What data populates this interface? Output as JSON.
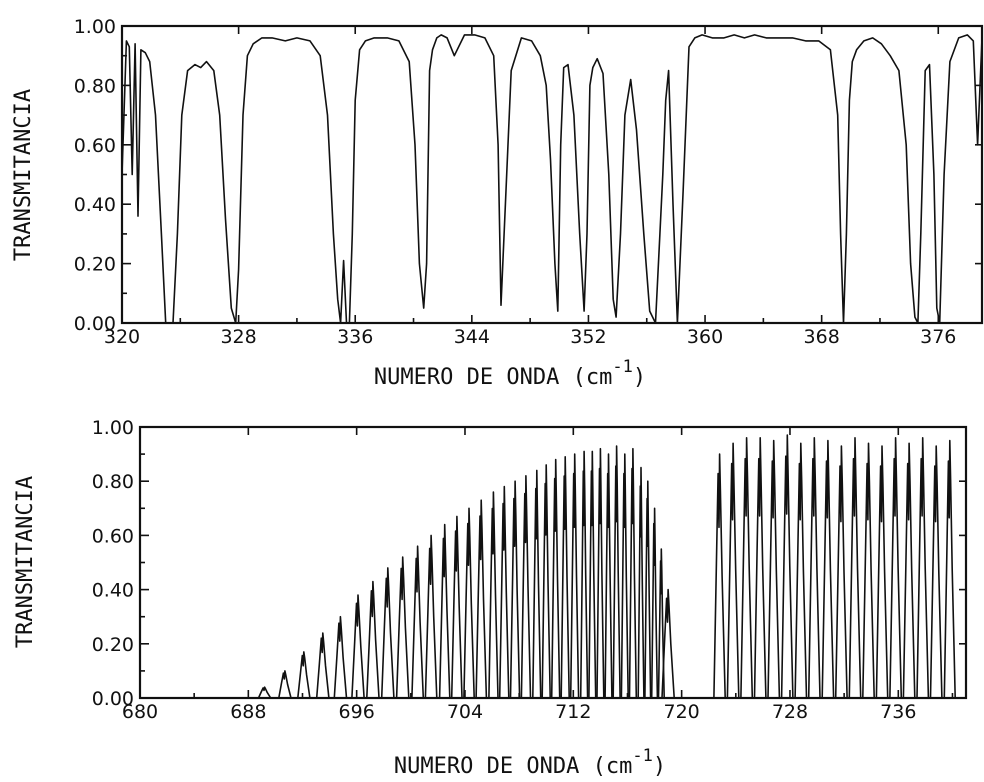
{
  "chart_data": [
    {
      "type": "line",
      "xlabel": "NUMERO DE ONDA (cm",
      "xlabel_sup": "-1",
      "xlabel_close": ")",
      "ylabel": "TRANSMITANCIA",
      "xlim": [
        320,
        379
      ],
      "ylim": [
        0,
        1
      ],
      "x_ticks": [
        320,
        328,
        336,
        344,
        352,
        360,
        368,
        376
      ],
      "x_tick_labels": [
        "320",
        "328",
        "336",
        "344",
        "352",
        "360",
        "368",
        "376"
      ],
      "y_ticks": [
        0,
        0.2,
        0.4,
        0.6,
        0.8,
        1.0
      ],
      "y_tick_labels": [
        "0.00",
        "0.20",
        "0.40",
        "0.60",
        "0.80",
        "1.00"
      ],
      "grid": false,
      "series": [
        {
          "x": [
            320.0,
            320.3,
            320.5,
            320.7,
            320.9,
            321.1,
            321.3,
            321.6,
            321.9,
            322.3,
            322.7,
            323.0,
            323.3,
            323.5,
            323.8,
            324.1,
            324.5,
            325.0,
            325.4,
            325.8,
            326.3,
            326.7,
            327.1,
            327.5,
            327.8,
            328.0,
            328.3,
            328.6,
            329.0,
            329.6,
            330.3,
            331.2,
            332.0,
            332.9,
            333.6,
            334.1,
            334.5,
            334.8,
            335.0,
            335.2,
            335.4,
            335.6,
            335.8,
            336.0,
            336.3,
            336.7,
            337.3,
            338.2,
            339.0,
            339.7,
            340.1,
            340.4,
            340.7,
            340.9,
            341.1,
            341.3,
            341.6,
            341.9,
            342.3,
            342.8,
            343.5,
            344.2,
            344.9,
            345.5,
            345.8,
            346.0,
            346.3,
            346.7,
            347.4,
            348.1,
            348.7,
            349.1,
            349.4,
            349.7,
            349.9,
            350.1,
            350.3,
            350.6,
            351.0,
            351.4,
            351.7,
            351.9,
            352.1,
            352.3,
            352.6,
            353.0,
            353.4,
            353.7,
            353.9,
            354.2,
            354.5,
            354.9,
            355.3,
            355.8,
            356.2,
            356.6,
            356.9,
            357.1,
            357.3,
            357.5,
            357.8,
            358.1,
            358.5,
            358.9,
            359.3,
            359.8,
            360.5,
            361.3,
            362.0,
            362.7,
            363.4,
            364.2,
            365.1,
            366.0,
            366.9,
            367.8,
            368.6,
            369.1,
            369.3,
            369.5,
            369.7,
            369.9,
            370.1,
            370.4,
            370.9,
            371.5,
            372.1,
            372.7,
            373.3,
            373.8,
            374.1,
            374.4,
            374.6,
            374.8,
            375.1,
            375.4,
            375.7,
            375.9,
            376.1,
            376.4,
            376.8,
            377.4,
            378.0,
            378.4,
            378.7,
            379.0
          ],
          "y": [
            0.5,
            0.95,
            0.93,
            0.5,
            0.94,
            0.36,
            0.92,
            0.91,
            0.88,
            0.7,
            0.3,
            0.0,
            0.0,
            0.0,
            0.3,
            0.7,
            0.85,
            0.87,
            0.86,
            0.88,
            0.85,
            0.7,
            0.35,
            0.05,
            0.0,
            0.18,
            0.7,
            0.9,
            0.94,
            0.96,
            0.96,
            0.95,
            0.96,
            0.95,
            0.9,
            0.7,
            0.3,
            0.08,
            0.0,
            0.21,
            0.0,
            0.0,
            0.3,
            0.75,
            0.92,
            0.95,
            0.96,
            0.96,
            0.95,
            0.88,
            0.6,
            0.2,
            0.05,
            0.2,
            0.85,
            0.92,
            0.96,
            0.97,
            0.96,
            0.9,
            0.97,
            0.97,
            0.96,
            0.9,
            0.6,
            0.06,
            0.4,
            0.85,
            0.96,
            0.95,
            0.9,
            0.8,
            0.55,
            0.2,
            0.04,
            0.6,
            0.86,
            0.87,
            0.7,
            0.3,
            0.04,
            0.3,
            0.8,
            0.86,
            0.89,
            0.84,
            0.5,
            0.08,
            0.02,
            0.3,
            0.7,
            0.82,
            0.65,
            0.3,
            0.04,
            0.0,
            0.3,
            0.5,
            0.75,
            0.85,
            0.4,
            0.0,
            0.45,
            0.93,
            0.96,
            0.97,
            0.96,
            0.96,
            0.97,
            0.96,
            0.97,
            0.96,
            0.96,
            0.96,
            0.95,
            0.95,
            0.92,
            0.7,
            0.3,
            0.0,
            0.3,
            0.75,
            0.88,
            0.92,
            0.95,
            0.96,
            0.94,
            0.9,
            0.85,
            0.6,
            0.2,
            0.02,
            0.0,
            0.3,
            0.85,
            0.87,
            0.5,
            0.05,
            0.0,
            0.5,
            0.88,
            0.96,
            0.97,
            0.95,
            0.6,
            0.96
          ]
        }
      ]
    },
    {
      "type": "line",
      "xlabel": "NUMERO DE ONDA (cm",
      "xlabel_sup": "-1",
      "xlabel_close": ")",
      "ylabel": "TRANSMITANCIA",
      "xlim": [
        680,
        741
      ],
      "ylim": [
        0,
        1
      ],
      "x_ticks": [
        680,
        688,
        696,
        704,
        712,
        720,
        728,
        736
      ],
      "x_tick_labels": [
        "680",
        "688",
        "696",
        "704",
        "712",
        "720",
        "728",
        "736"
      ],
      "y_ticks": [
        0,
        0.2,
        0.4,
        0.6,
        0.8,
        1.0
      ],
      "y_tick_labels": [
        "0.00",
        "0.20",
        "0.40",
        "0.60",
        "0.80",
        "1.00"
      ],
      "grid": false,
      "band_centers": [
        689.2,
        690.7,
        692.1,
        693.5,
        694.8,
        696.1,
        697.2,
        698.3,
        699.4,
        700.5,
        701.5,
        702.5,
        703.4,
        704.3,
        705.2,
        706.1,
        706.9,
        707.7,
        708.5,
        709.3,
        710.0,
        710.7,
        711.4,
        712.1,
        712.8,
        713.4,
        714.0,
        714.6,
        715.2,
        715.8,
        716.4,
        717.0,
        717.5,
        718.0,
        718.5,
        719.0,
        722.8,
        723.8,
        724.8,
        725.8,
        726.8,
        727.8,
        728.8,
        729.8,
        730.8,
        731.8,
        732.8,
        733.8,
        734.8,
        735.8,
        736.8,
        737.8,
        738.8,
        739.8
      ],
      "band_peaks": [
        0.04,
        0.1,
        0.17,
        0.24,
        0.3,
        0.38,
        0.43,
        0.48,
        0.52,
        0.56,
        0.6,
        0.64,
        0.67,
        0.7,
        0.73,
        0.76,
        0.78,
        0.8,
        0.82,
        0.84,
        0.86,
        0.88,
        0.89,
        0.9,
        0.91,
        0.91,
        0.92,
        0.9,
        0.93,
        0.9,
        0.92,
        0.85,
        0.8,
        0.7,
        0.55,
        0.4,
        0.9,
        0.94,
        0.96,
        0.96,
        0.95,
        0.97,
        0.94,
        0.96,
        0.95,
        0.93,
        0.96,
        0.94,
        0.93,
        0.96,
        0.94,
        0.96,
        0.93,
        0.95
      ]
    }
  ]
}
